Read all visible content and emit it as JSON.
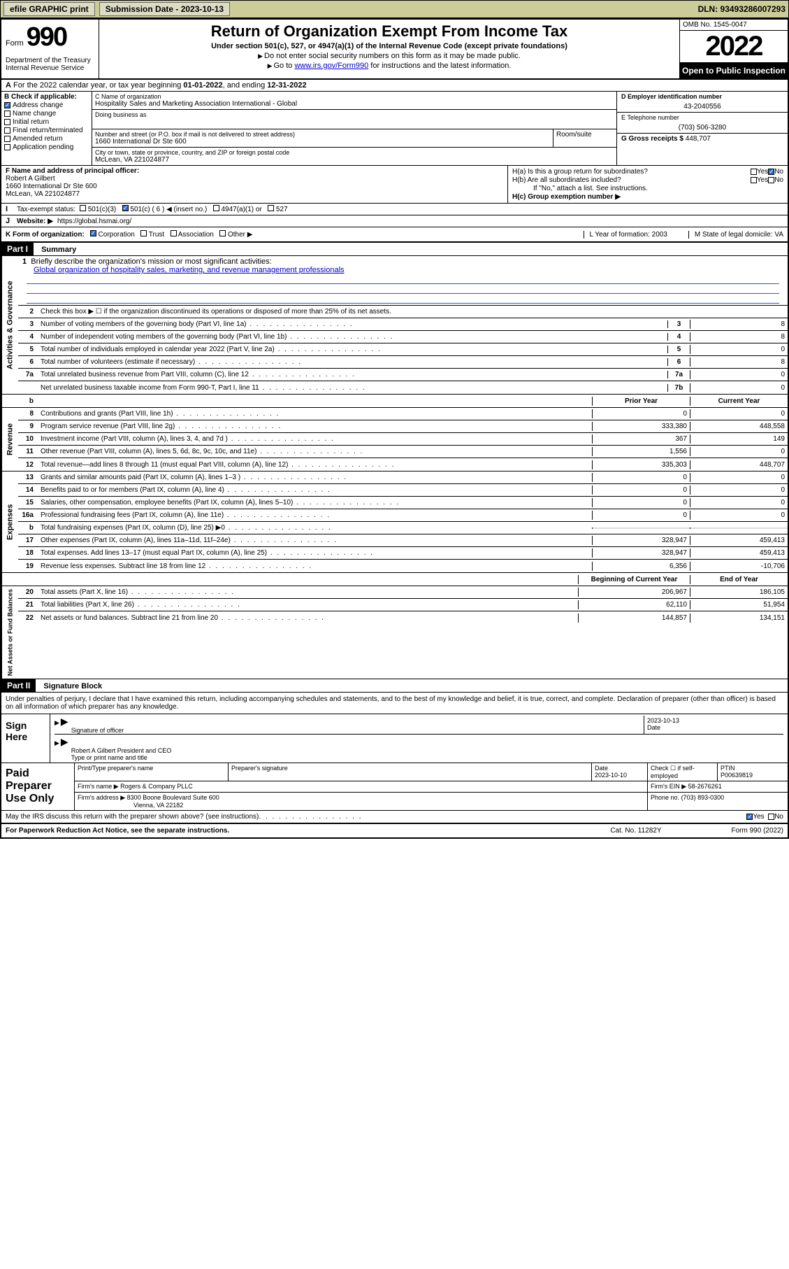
{
  "topbar": {
    "efile": "efile GRAPHIC print",
    "submission_label": "Submission Date - 2023-10-13",
    "dln": "DLN: 93493286007293"
  },
  "header": {
    "form_word": "Form",
    "form_number": "990",
    "dept": "Department of the Treasury Internal Revenue Service",
    "title": "Return of Organization Exempt From Income Tax",
    "subtitle": "Under section 501(c), 527, or 4947(a)(1) of the Internal Revenue Code (except private foundations)",
    "note1": "Do not enter social security numbers on this form as it may be made public.",
    "note2_pre": "Go to ",
    "note2_link": "www.irs.gov/Form990",
    "note2_post": " for instructions and the latest information.",
    "omb": "OMB No. 1545-0047",
    "year": "2022",
    "open_pub": "Open to Public Inspection"
  },
  "row_a": {
    "label": "A",
    "text_pre": "For the 2022 calendar year, or tax year beginning ",
    "begin": "01-01-2022",
    "mid": ", and ending ",
    "end": "12-31-2022"
  },
  "col_b": {
    "header": "B Check if applicable:",
    "items": [
      {
        "label": "Address change",
        "checked": true
      },
      {
        "label": "Name change",
        "checked": false
      },
      {
        "label": "Initial return",
        "checked": false
      },
      {
        "label": "Final return/terminated",
        "checked": false
      },
      {
        "label": "Amended return",
        "checked": false
      },
      {
        "label": "Application pending",
        "checked": false
      }
    ]
  },
  "col_c": {
    "name_label": "C Name of organization",
    "name": "Hospitality Sales and Marketing Association International - Global",
    "dba_label": "Doing business as",
    "addr_label": "Number and street (or P.O. box if mail is not delivered to street address)",
    "addr": "1660 International Dr Ste 600",
    "room_label": "Room/suite",
    "city_label": "City or town, state or province, country, and ZIP or foreign postal code",
    "city": "McLean, VA  221024877"
  },
  "col_d": {
    "d_label": "D Employer identification number",
    "ein": "43-2040556",
    "e_label": "E Telephone number",
    "phone": "(703) 506-3280",
    "g_label": "G Gross receipts $",
    "gross": "448,707"
  },
  "row_f": {
    "label": "F Name and address of principal officer:",
    "name": "Robert A Gilbert",
    "addr1": "1660 International Dr Ste 600",
    "addr2": "McLean, VA  221024877"
  },
  "row_h": {
    "ha": "H(a)  Is this a group return for subordinates?",
    "hb": "H(b)  Are all subordinates included?",
    "hb_note": "If \"No,\" attach a list. See instructions.",
    "hc": "H(c)  Group exemption number ▶",
    "yes": "Yes",
    "no": "No"
  },
  "row_i": {
    "label": "Tax-exempt status:",
    "opts": [
      "501(c)(3)",
      "501(c) ( 6 ) ◀ (insert no.)",
      "4947(a)(1) or",
      "527"
    ],
    "checked_idx": 1
  },
  "row_j": {
    "label": "Website: ▶",
    "url": "https://global.hsmai.org/"
  },
  "row_k": {
    "label": "K Form of organization:",
    "opts": [
      "Corporation",
      "Trust",
      "Association",
      "Other ▶"
    ],
    "checked_idx": 0,
    "l": "L Year of formation: 2003",
    "m": "M State of legal domicile: VA"
  },
  "part1": {
    "header": "Part I",
    "title": "Summary",
    "line1_label": "Briefly describe the organization's mission or most significant activities:",
    "line1_text": "Global organization of hospitality sales, marketing, and revenue management professionals",
    "line2": "Check this box ▶ ☐  if the organization discontinued its operations or disposed of more than 25% of its net assets.",
    "gov_rows": [
      {
        "n": "3",
        "desc": "Number of voting members of the governing body (Part VI, line 1a)",
        "box": "3",
        "val": "8"
      },
      {
        "n": "4",
        "desc": "Number of independent voting members of the governing body (Part VI, line 1b)",
        "box": "4",
        "val": "8"
      },
      {
        "n": "5",
        "desc": "Total number of individuals employed in calendar year 2022 (Part V, line 2a)",
        "box": "5",
        "val": "0"
      },
      {
        "n": "6",
        "desc": "Total number of volunteers (estimate if necessary)",
        "box": "6",
        "val": "8"
      },
      {
        "n": "7a",
        "desc": "Total unrelated business revenue from Part VIII, column (C), line 12",
        "box": "7a",
        "val": "0"
      },
      {
        "n": "",
        "desc": "Net unrelated business taxable income from Form 990-T, Part I, line 11",
        "box": "7b",
        "val": "0"
      }
    ],
    "col_hdr_prior": "Prior Year",
    "col_hdr_current": "Current Year",
    "rev_rows": [
      {
        "n": "8",
        "desc": "Contributions and grants (Part VIII, line 1h)",
        "p": "0",
        "c": "0"
      },
      {
        "n": "9",
        "desc": "Program service revenue (Part VIII, line 2g)",
        "p": "333,380",
        "c": "448,558"
      },
      {
        "n": "10",
        "desc": "Investment income (Part VIII, column (A), lines 3, 4, and 7d )",
        "p": "367",
        "c": "149"
      },
      {
        "n": "11",
        "desc": "Other revenue (Part VIII, column (A), lines 5, 6d, 8c, 9c, 10c, and 11e)",
        "p": "1,556",
        "c": "0"
      },
      {
        "n": "12",
        "desc": "Total revenue—add lines 8 through 11 (must equal Part VIII, column (A), line 12)",
        "p": "335,303",
        "c": "448,707"
      }
    ],
    "exp_rows": [
      {
        "n": "13",
        "desc": "Grants and similar amounts paid (Part IX, column (A), lines 1–3 )",
        "p": "0",
        "c": "0"
      },
      {
        "n": "14",
        "desc": "Benefits paid to or for members (Part IX, column (A), line 4)",
        "p": "0",
        "c": "0"
      },
      {
        "n": "15",
        "desc": "Salaries, other compensation, employee benefits (Part IX, column (A), lines 5–10)",
        "p": "0",
        "c": "0"
      },
      {
        "n": "16a",
        "desc": "Professional fundraising fees (Part IX, column (A), line 11e)",
        "p": "0",
        "c": "0"
      },
      {
        "n": "b",
        "desc": "Total fundraising expenses (Part IX, column (D), line 25) ▶0",
        "p": "",
        "c": "",
        "shade": true
      },
      {
        "n": "17",
        "desc": "Other expenses (Part IX, column (A), lines 11a–11d, 11f–24e)",
        "p": "328,947",
        "c": "459,413"
      },
      {
        "n": "18",
        "desc": "Total expenses. Add lines 13–17 (must equal Part IX, column (A), line 25)",
        "p": "328,947",
        "c": "459,413"
      },
      {
        "n": "19",
        "desc": "Revenue less expenses. Subtract line 18 from line 12",
        "p": "6,356",
        "c": "-10,706"
      }
    ],
    "na_hdr_b": "Beginning of Current Year",
    "na_hdr_e": "End of Year",
    "na_rows": [
      {
        "n": "20",
        "desc": "Total assets (Part X, line 16)",
        "p": "206,967",
        "c": "186,105"
      },
      {
        "n": "21",
        "desc": "Total liabilities (Part X, line 26)",
        "p": "62,110",
        "c": "51,954"
      },
      {
        "n": "22",
        "desc": "Net assets or fund balances. Subtract line 21 from line 20",
        "p": "144,857",
        "c": "134,151"
      }
    ],
    "vert_gov": "Activities & Governance",
    "vert_rev": "Revenue",
    "vert_exp": "Expenses",
    "vert_na": "Net Assets or Fund Balances"
  },
  "part2": {
    "header": "Part II",
    "title": "Signature Block",
    "disclaimer": "Under penalties of perjury, I declare that I have examined this return, including accompanying schedules and statements, and to the best of my knowledge and belief, it is true, correct, and complete. Declaration of preparer (other than officer) is based on all information of which preparer has any knowledge.",
    "sign_here": "Sign Here",
    "sig_officer": "Signature of officer",
    "sig_date": "2023-10-13",
    "date_label": "Date",
    "officer_name": "Robert A Gilbert  President and CEO",
    "officer_label": "Type or print name and title",
    "paid_prep": "Paid Preparer Use Only",
    "prep_name_label": "Print/Type preparer's name",
    "prep_sig_label": "Preparer's signature",
    "prep_date_label": "Date",
    "prep_date": "2023-10-10",
    "prep_check": "Check ☐ if self-employed",
    "ptin_label": "PTIN",
    "ptin": "P00639819",
    "firm_name_label": "Firm's name      ▶",
    "firm_name": "Rogers & Company PLLC",
    "firm_ein_label": "Firm's EIN ▶",
    "firm_ein": "58-2676261",
    "firm_addr_label": "Firm's address ▶",
    "firm_addr": "8300 Boone Boulevard Suite 600",
    "firm_city": "Vienna, VA  22182",
    "phone_label": "Phone no.",
    "phone": "(703) 893-0300",
    "may_irs": "May the IRS discuss this return with the preparer shown above? (see instructions)",
    "yes": "Yes",
    "no": "No"
  },
  "footer": {
    "left": "For Paperwork Reduction Act Notice, see the separate instructions.",
    "mid": "Cat. No. 11282Y",
    "right": "Form 990 (2022)"
  }
}
